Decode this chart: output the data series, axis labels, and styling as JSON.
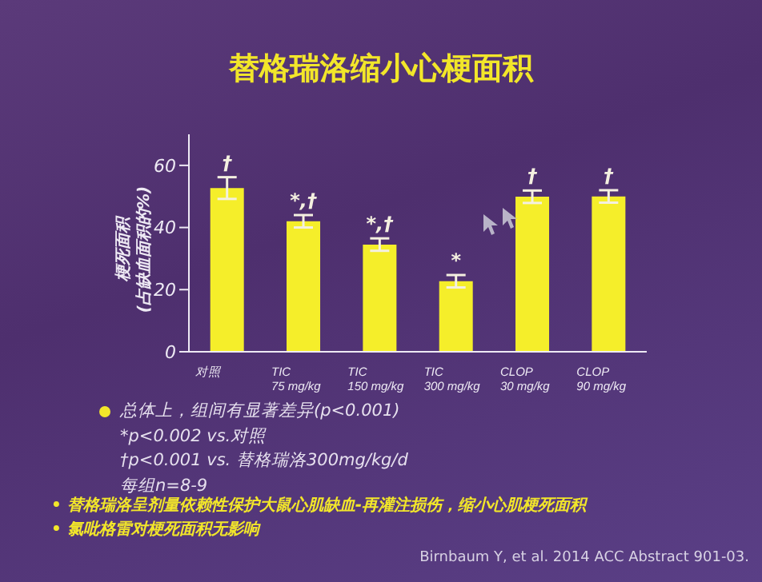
{
  "chart_data": {
    "type": "bar",
    "title": "替格瑞洛缩小心梗面积",
    "ylabel": "梗死面积\n(占缺血面积的%)",
    "categories": [
      "对照",
      "TIC\n75 mg/kg",
      "TIC\n150 mg/kg",
      "TIC\n300 mg/kg",
      "CLOP\n30 mg/kg",
      "CLOP\n90 mg/kg"
    ],
    "values": [
      52.7,
      42,
      34.5,
      22.7,
      49.9,
      50
    ],
    "errors": [
      3.5,
      2,
      2,
      2,
      2,
      2
    ],
    "color": "#f5ee2a",
    "ylim": [
      0,
      70
    ],
    "yticks": [
      0,
      20,
      40,
      60
    ],
    "grid": false,
    "legend": false,
    "annotations": [
      {
        "text": "†",
        "x": "对照",
        "y": 56.2
      },
      {
        "text": "*,†",
        "x": "TIC\n75 mg/kg",
        "y": 44
      },
      {
        "text": "*,†",
        "x": "TIC\n150 mg/kg",
        "y": 36.5
      },
      {
        "text": "*",
        "x": "TIC\n300 mg/kg",
        "y": 24.7
      },
      {
        "text": "†",
        "x": "CLOP\n30 mg/kg",
        "y": 51.9
      },
      {
        "text": "†",
        "x": "CLOP\n90 mg/kg",
        "y": 52
      },
      "总体上，组间有显著差异(p<0.001)",
      "*p<0.002 vs.对照",
      "†p<0.001 vs. 替格瑞洛300mg/kg/d",
      "每组n=8-9",
      "• 替格瑞洛呈剂量依赖性保护大鼠心肌缺血-再灌注损伤，缩小心肌梗死面积",
      "• 氯吡格雷对梗死面积无影响",
      "Birnbaum Y, et al. 2014 ACC Abstract 901-03."
    ]
  }
}
